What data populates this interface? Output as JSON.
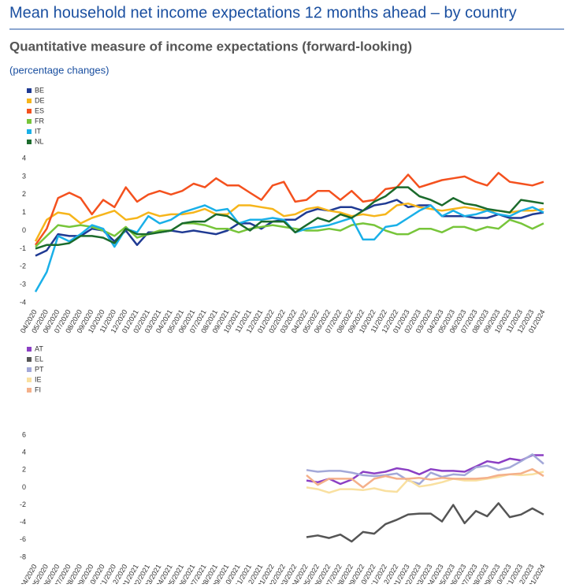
{
  "header": {
    "title": "Mean household net income expectations 12 months ahead – by country",
    "subtitle": "Quantitative measure of income expectations (forward-looking)",
    "unit": "(percentage changes)"
  },
  "chart_data": [
    {
      "type": "line",
      "categories": [
        "04/2020",
        "05/2020",
        "06/2020",
        "07/2020",
        "08/2020",
        "09/2020",
        "10/2020",
        "11/2020",
        "12/2020",
        "01/2021",
        "02/2021",
        "03/2021",
        "04/2021",
        "05/2021",
        "06/2021",
        "07/2021",
        "08/2021",
        "09/2021",
        "10/2021",
        "11/2021",
        "12/2021",
        "01/2022",
        "02/2022",
        "03/2022",
        "04/2022",
        "05/2022",
        "06/2022",
        "07/2022",
        "08/2022",
        "09/2022",
        "10/2022",
        "11/2022",
        "12/2022",
        "01/2023",
        "02/2023",
        "03/2023",
        "04/2023",
        "05/2023",
        "06/2023",
        "07/2023",
        "08/2023",
        "09/2023",
        "10/2023",
        "11/2023",
        "12/2023",
        "01/2024"
      ],
      "ylim": [
        -4,
        4
      ],
      "yticks": [
        -4,
        -3,
        -2,
        -1,
        0,
        1,
        2,
        3,
        4
      ],
      "series": [
        {
          "name": "BE",
          "color": "#1f3a93",
          "values": [
            -1.4,
            -1.1,
            -0.2,
            -0.3,
            -0.3,
            0.1,
            0.0,
            -0.6,
            0.0,
            -0.8,
            -0.1,
            -0.1,
            0.0,
            -0.1,
            0.0,
            -0.1,
            -0.2,
            0.0,
            0.4,
            0.4,
            0.1,
            0.5,
            0.6,
            0.6,
            1.0,
            1.2,
            1.1,
            1.3,
            1.3,
            1.1,
            1.4,
            1.5,
            1.7,
            1.3,
            1.4,
            1.4,
            0.8,
            0.8,
            0.8,
            0.7,
            0.7,
            0.9,
            0.7,
            0.7,
            0.9,
            1.0
          ]
        },
        {
          "name": "DE",
          "color": "#f6b51b",
          "values": [
            -0.6,
            0.6,
            1.0,
            0.9,
            0.4,
            0.7,
            0.9,
            1.1,
            0.6,
            0.7,
            1.0,
            0.8,
            0.9,
            0.9,
            1.0,
            1.2,
            0.9,
            0.9,
            1.4,
            1.4,
            1.3,
            1.2,
            0.8,
            0.9,
            1.2,
            1.3,
            1.1,
            1.0,
            0.8,
            0.9,
            0.8,
            0.9,
            1.4,
            1.5,
            1.3,
            1.2,
            1.1,
            1.2,
            1.3,
            1.2,
            1.1,
            1.1,
            1.0,
            1.1,
            1.1,
            1.2
          ]
        },
        {
          "name": "ES",
          "color": "#f4511e",
          "values": [
            -0.8,
            0.1,
            1.8,
            2.1,
            1.8,
            0.9,
            1.7,
            1.3,
            2.4,
            1.6,
            2.0,
            2.2,
            2.0,
            2.2,
            2.6,
            2.4,
            2.9,
            2.5,
            2.5,
            2.1,
            1.7,
            2.5,
            2.7,
            1.6,
            1.7,
            2.2,
            2.2,
            1.7,
            2.2,
            1.6,
            1.7,
            2.3,
            2.4,
            3.1,
            2.4,
            2.6,
            2.8,
            2.9,
            3.0,
            2.7,
            2.5,
            3.2,
            2.7,
            2.6,
            2.5,
            2.7
          ]
        },
        {
          "name": "FR",
          "color": "#77c53a",
          "values": [
            -0.9,
            -0.3,
            0.3,
            0.2,
            0.3,
            0.2,
            0.0,
            -0.3,
            0.2,
            -0.4,
            -0.2,
            0.0,
            0.0,
            0.4,
            0.4,
            0.3,
            0.1,
            0.1,
            -0.1,
            0.1,
            0.2,
            0.3,
            0.2,
            0.1,
            0.0,
            0.0,
            0.1,
            0.0,
            0.3,
            0.4,
            0.3,
            0.0,
            -0.2,
            -0.2,
            0.1,
            0.1,
            -0.1,
            0.2,
            0.2,
            0.0,
            0.2,
            0.1,
            0.6,
            0.4,
            0.1,
            0.4
          ]
        },
        {
          "name": "IT",
          "color": "#1ab0e8",
          "values": [
            -3.4,
            -2.3,
            -0.3,
            -0.6,
            -0.2,
            0.3,
            0.1,
            -0.9,
            0.1,
            -0.1,
            0.8,
            0.4,
            0.6,
            1.0,
            1.2,
            1.4,
            1.1,
            1.2,
            0.4,
            0.6,
            0.6,
            0.7,
            0.6,
            -0.1,
            0.1,
            0.2,
            0.3,
            0.5,
            0.7,
            -0.5,
            -0.5,
            0.2,
            0.3,
            0.7,
            1.1,
            1.4,
            0.8,
            1.1,
            0.8,
            0.9,
            1.1,
            0.9,
            0.8,
            1.1,
            1.3,
            1.0
          ]
        },
        {
          "name": "NL",
          "color": "#1b6b2c",
          "values": [
            -1.0,
            -0.8,
            -0.8,
            -0.7,
            -0.3,
            -0.3,
            -0.4,
            -0.7,
            0.1,
            -0.2,
            -0.2,
            -0.1,
            0.0,
            0.4,
            0.5,
            0.5,
            0.9,
            0.8,
            0.4,
            0.0,
            0.5,
            0.5,
            0.5,
            -0.1,
            0.3,
            0.7,
            0.5,
            0.9,
            0.7,
            1.1,
            1.6,
            1.9,
            2.4,
            2.4,
            1.9,
            1.7,
            1.4,
            1.8,
            1.5,
            1.4,
            1.2,
            1.1,
            1.0,
            1.7,
            1.6,
            1.5
          ]
        }
      ]
    },
    {
      "type": "line",
      "categories": [
        "04/2020",
        "05/2020",
        "06/2020",
        "07/2020",
        "08/2020",
        "09/2020",
        "10/2020",
        "11/2020",
        "12/2020",
        "01/2021",
        "02/2021",
        "03/2021",
        "04/2021",
        "05/2021",
        "06/2021",
        "07/2021",
        "08/2021",
        "09/2021",
        "10/2021",
        "11/2021",
        "12/2021",
        "01/2022",
        "02/2022",
        "03/2022",
        "04/2022",
        "05/2022",
        "06/2022",
        "07/2022",
        "08/2022",
        "09/2022",
        "10/2022",
        "11/2022",
        "12/2022",
        "01/2023",
        "02/2023",
        "03/2023",
        "04/2023",
        "05/2023",
        "06/2023",
        "07/2023",
        "08/2023",
        "09/2023",
        "10/2023",
        "11/2023",
        "12/2023",
        "01/2024"
      ],
      "ylim": [
        -8,
        6
      ],
      "yticks": [
        -8,
        -6,
        -4,
        -2,
        0,
        2,
        4,
        6
      ],
      "series": [
        {
          "name": "AT",
          "color": "#8b3fc4",
          "values": [
            null,
            null,
            null,
            null,
            null,
            null,
            null,
            null,
            null,
            null,
            null,
            null,
            null,
            null,
            null,
            null,
            null,
            null,
            null,
            null,
            null,
            null,
            null,
            null,
            0.8,
            0.6,
            1.0,
            0.4,
            0.9,
            1.8,
            1.6,
            1.8,
            2.2,
            2.0,
            1.5,
            2.1,
            1.9,
            1.9,
            1.8,
            2.4,
            3.0,
            2.8,
            3.3,
            3.1,
            3.7,
            3.7
          ]
        },
        {
          "name": "EL",
          "color": "#555555",
          "values": [
            null,
            null,
            null,
            null,
            null,
            null,
            null,
            null,
            null,
            null,
            null,
            null,
            null,
            null,
            null,
            null,
            null,
            null,
            null,
            null,
            null,
            null,
            null,
            null,
            -5.7,
            -5.5,
            -5.8,
            -5.4,
            -6.2,
            -5.1,
            -5.3,
            -4.2,
            -3.7,
            -3.1,
            -3.0,
            -3.0,
            -3.9,
            -2.0,
            -4.1,
            -2.7,
            -3.3,
            -1.8,
            -3.4,
            -3.1,
            -2.4,
            -3.1
          ]
        },
        {
          "name": "PT",
          "color": "#a3a8d8",
          "values": [
            null,
            null,
            null,
            null,
            null,
            null,
            null,
            null,
            null,
            null,
            null,
            null,
            null,
            null,
            null,
            null,
            null,
            null,
            null,
            null,
            null,
            null,
            null,
            null,
            2.0,
            1.8,
            1.9,
            1.9,
            1.7,
            1.4,
            1.3,
            1.4,
            1.6,
            0.8,
            0.4,
            1.7,
            1.2,
            1.5,
            1.4,
            2.3,
            2.5,
            2.0,
            2.3,
            3.0,
            3.8,
            2.7
          ]
        },
        {
          "name": "IE",
          "color": "#f9e0a0",
          "values": [
            null,
            null,
            null,
            null,
            null,
            null,
            null,
            null,
            null,
            null,
            null,
            null,
            null,
            null,
            null,
            null,
            null,
            null,
            null,
            null,
            null,
            null,
            null,
            null,
            0.0,
            -0.2,
            -0.6,
            -0.2,
            -0.2,
            -0.3,
            -0.1,
            -0.4,
            -0.5,
            0.9,
            0.1,
            0.3,
            0.6,
            1.0,
            0.8,
            0.8,
            1.0,
            1.2,
            1.5,
            1.4,
            1.5,
            1.8
          ]
        },
        {
          "name": "FI",
          "color": "#f4b08a",
          "values": [
            null,
            null,
            null,
            null,
            null,
            null,
            null,
            null,
            null,
            null,
            null,
            null,
            null,
            null,
            null,
            null,
            null,
            null,
            null,
            null,
            null,
            null,
            null,
            null,
            1.4,
            0.3,
            1.0,
            1.0,
            1.0,
            0.0,
            1.0,
            1.3,
            1.0,
            1.0,
            1.1,
            0.9,
            1.1,
            1.0,
            1.0,
            1.0,
            1.1,
            1.4,
            1.5,
            1.6,
            2.1,
            1.3
          ]
        }
      ]
    }
  ]
}
